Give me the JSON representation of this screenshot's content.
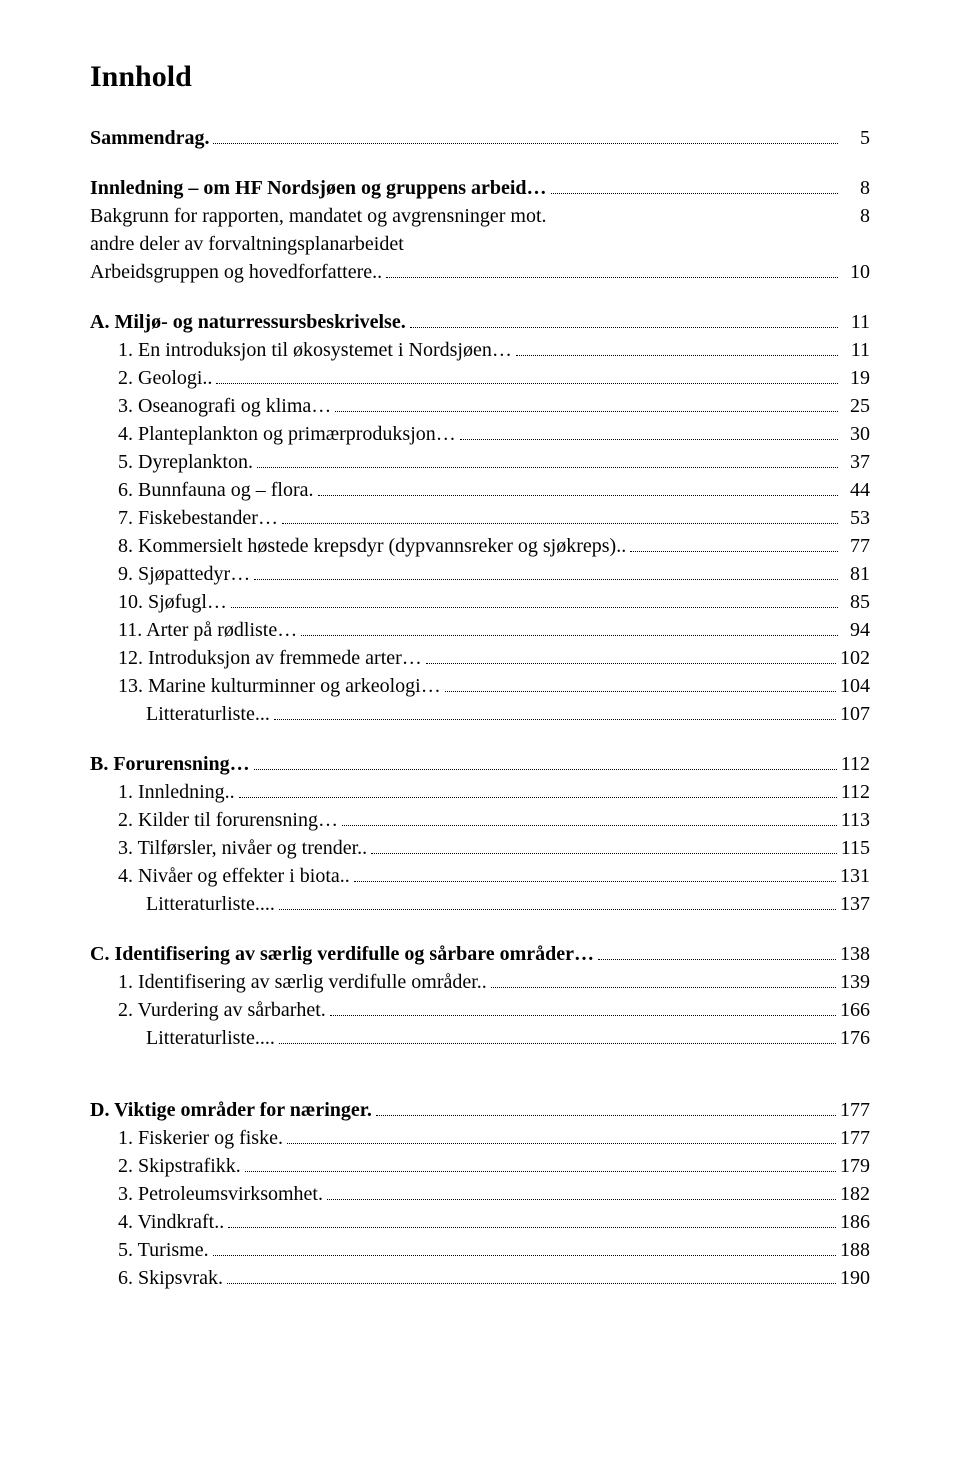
{
  "title": "Innhold",
  "rows": [
    {
      "label": "Sammendrag.",
      "page": "5",
      "bold": true,
      "indent": 0,
      "gap_after": "section"
    },
    {
      "label": "Innledning – om HF Nordsjøen og gruppens arbeid…",
      "page": "8",
      "bold": true,
      "indent": 0
    },
    {
      "label": "Bakgrunn for rapporten, mandatet og avgrensninger mot.",
      "page": "8",
      "bold": false,
      "indent": 0,
      "no_leader": true
    },
    {
      "label": "andre deler av forvaltningsplanarbeidet",
      "page": "",
      "bold": false,
      "indent": 0,
      "no_leader": true
    },
    {
      "label": "Arbeidsgruppen og hovedforfattere..",
      "page": "10",
      "bold": false,
      "indent": 0,
      "gap_after": "section"
    },
    {
      "label": "A. Miljø- og naturressursbeskrivelse.",
      "page": "11",
      "bold": true,
      "indent": 0
    },
    {
      "label": "1.  En introduksjon til økosystemet i Nordsjøen…",
      "page": "11",
      "bold": false,
      "indent": 1
    },
    {
      "label": "2.  Geologi..",
      "page": "19",
      "bold": false,
      "indent": 1
    },
    {
      "label": "3.  Oseanografi og klima…",
      "page": "25",
      "bold": false,
      "indent": 1
    },
    {
      "label": "4.  Planteplankton og primærproduksjon…",
      "page": "30",
      "bold": false,
      "indent": 1
    },
    {
      "label": "5.  Dyreplankton.",
      "page": "37",
      "bold": false,
      "indent": 1
    },
    {
      "label": "6.  Bunnfauna og – flora.",
      "page": "44",
      "bold": false,
      "indent": 1
    },
    {
      "label": "7.  Fiskebestander…",
      "page": "53",
      "bold": false,
      "indent": 1
    },
    {
      "label": "8.  Kommersielt høstede krepsdyr (dypvannsreker og sjøkreps)..",
      "page": "77",
      "bold": false,
      "indent": 1
    },
    {
      "label": "9.  Sjøpattedyr…",
      "page": "81",
      "bold": false,
      "indent": 1
    },
    {
      "label": "10. Sjøfugl…",
      "page": "85",
      "bold": false,
      "indent": 1
    },
    {
      "label": "11. Arter på rødliste…",
      "page": "94",
      "bold": false,
      "indent": 1
    },
    {
      "label": "12. Introduksjon av fremmede arter…",
      "page": "102",
      "bold": false,
      "indent": 1
    },
    {
      "label": "13. Marine kulturminner og arkeologi…",
      "page": "104",
      "bold": false,
      "indent": 1
    },
    {
      "label": "Litteraturliste...",
      "page": "107",
      "bold": false,
      "indent": 2,
      "gap_after": "section"
    },
    {
      "label": "B. Forurensning…",
      "page": "112",
      "bold": true,
      "indent": 0
    },
    {
      "label": "1.  Innledning..",
      "page": "112",
      "bold": false,
      "indent": 1
    },
    {
      "label": "2.  Kilder til forurensning…",
      "page": "113",
      "bold": false,
      "indent": 1
    },
    {
      "label": "3.  Tilførsler, nivåer og trender..",
      "page": "115",
      "bold": false,
      "indent": 1
    },
    {
      "label": "4.  Nivåer og effekter i biota..",
      "page": "131",
      "bold": false,
      "indent": 1
    },
    {
      "label": "Litteraturliste....",
      "page": "137",
      "bold": false,
      "indent": 2,
      "gap_after": "section"
    },
    {
      "label": "C. Identifisering av særlig verdifulle og sårbare områder…",
      "page": "138",
      "bold": true,
      "indent": 0
    },
    {
      "label": "1.  Identifisering av særlig verdifulle områder..",
      "page": "139",
      "bold": false,
      "indent": 1
    },
    {
      "label": "2.  Vurdering av sårbarhet.",
      "page": "166",
      "bold": false,
      "indent": 1
    },
    {
      "label": "Litteraturliste....",
      "page": "176",
      "bold": false,
      "indent": 2,
      "gap_after": "big"
    },
    {
      "label": "D. Viktige områder for næringer.",
      "page": "177",
      "bold": true,
      "indent": 0
    },
    {
      "label": "1.  Fiskerier og fiske.",
      "page": "177",
      "bold": false,
      "indent": 1
    },
    {
      "label": "2.  Skipstrafikk.",
      "page": "179",
      "bold": false,
      "indent": 1
    },
    {
      "label": "3.  Petroleumsvirksomhet.",
      "page": "182",
      "bold": false,
      "indent": 1
    },
    {
      "label": "4.  Vindkraft..",
      "page": "186",
      "bold": false,
      "indent": 1
    },
    {
      "label": "5.  Turisme.",
      "page": "188",
      "bold": false,
      "indent": 1
    },
    {
      "label": "6.  Skipsvrak.",
      "page": "190",
      "bold": false,
      "indent": 1
    }
  ]
}
